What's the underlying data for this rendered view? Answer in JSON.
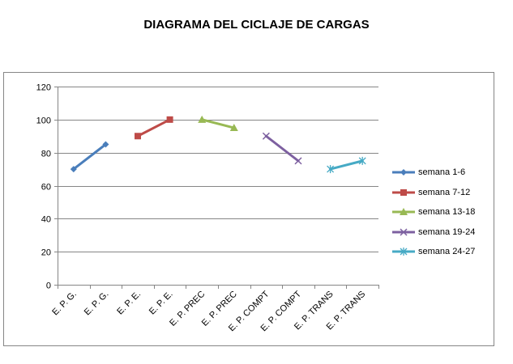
{
  "chart_data": {
    "type": "line",
    "title": "DIAGRAMA DEL CICLAJE DE CARGAS",
    "xlabel": "",
    "ylabel": "",
    "ylim": [
      0,
      120
    ],
    "yticks": [
      0,
      20,
      40,
      60,
      80,
      100,
      120
    ],
    "grid": true,
    "legend_position": "right",
    "categories": [
      "E. P. G.",
      "E. P. G.",
      "E. P. E.",
      "E. P. E.",
      "E. P. PREC",
      "E. P. PREC",
      "E. P. COMPT",
      "E. P. COMPT",
      "E. P. TRANS",
      "E. P. TRANS"
    ],
    "series": [
      {
        "name": "semana 1-6",
        "color": "#4a7ebb",
        "marker": "diamond",
        "values": [
          70,
          85,
          null,
          null,
          null,
          null,
          null,
          null,
          null,
          null
        ]
      },
      {
        "name": "semana 7-12",
        "color": "#be4b48",
        "marker": "square",
        "values": [
          null,
          null,
          90,
          100,
          null,
          null,
          null,
          null,
          null,
          null
        ]
      },
      {
        "name": "semana 13-18",
        "color": "#98b954",
        "marker": "triangle",
        "values": [
          null,
          null,
          null,
          null,
          100,
          95,
          null,
          null,
          null,
          null
        ]
      },
      {
        "name": "semana 19-24",
        "color": "#7d60a0",
        "marker": "x",
        "values": [
          null,
          null,
          null,
          null,
          null,
          null,
          90,
          75,
          null,
          null
        ]
      },
      {
        "name": "semana 24-27",
        "color": "#46aac5",
        "marker": "star",
        "values": [
          null,
          null,
          null,
          null,
          null,
          null,
          null,
          null,
          70,
          75
        ]
      }
    ]
  }
}
